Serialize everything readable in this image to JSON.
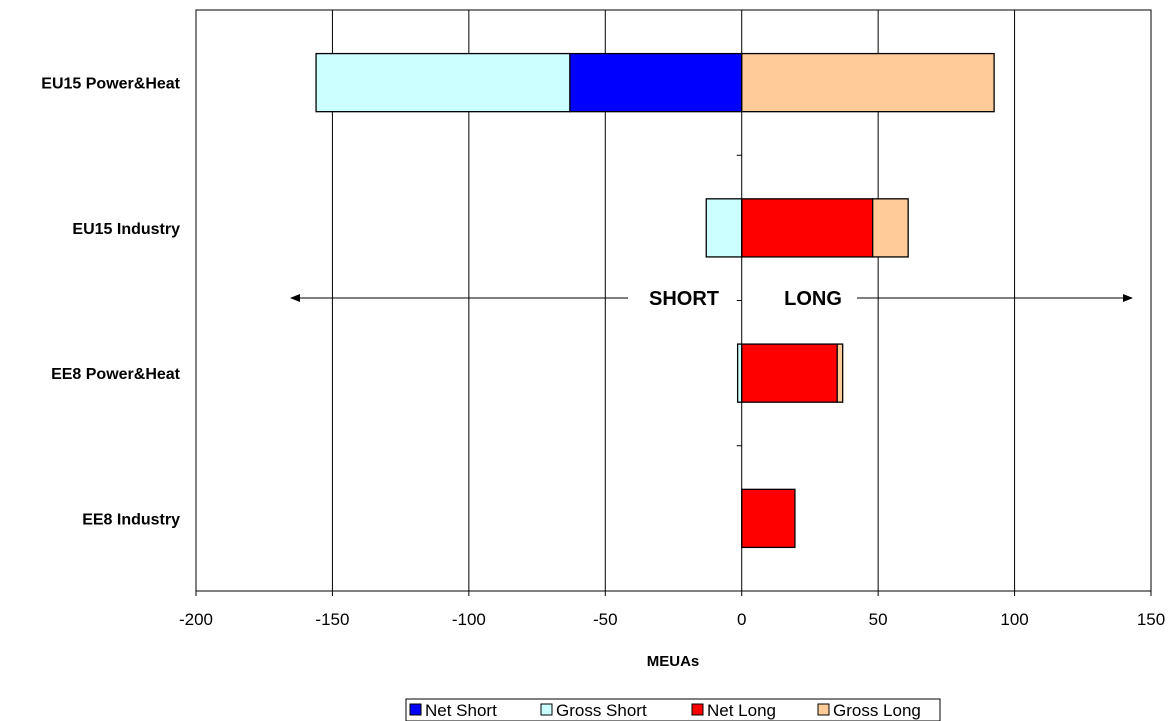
{
  "chart_data": {
    "type": "bar",
    "orientation": "horizontal",
    "stacked": true,
    "categories": [
      "EU15 Power&Heat",
      "EU15 Industry",
      "EE8 Power&Heat",
      "EE8 Industry"
    ],
    "series": [
      {
        "name": "Net Short",
        "color": "#0000ff",
        "values": [
          -63,
          0,
          0,
          0
        ]
      },
      {
        "name": "Gross Short",
        "color": "#ccffff",
        "values": [
          -93,
          -13,
          -1.5,
          0
        ]
      },
      {
        "name": "Net Long",
        "color": "#ff0000",
        "values": [
          0,
          48,
          35,
          19.5
        ]
      },
      {
        "name": "Gross Long",
        "color": "#ffcc99",
        "values": [
          92.5,
          13,
          2,
          0
        ]
      }
    ],
    "xlabel": "MEUAs",
    "xlim": [
      -200,
      150
    ],
    "xticks": [
      -200,
      -150,
      -100,
      -50,
      0,
      50,
      100,
      150
    ],
    "xtick_labels": [
      "-200",
      "-150",
      "-100",
      "-50",
      "0",
      "50",
      "100",
      "150"
    ],
    "grid": "vertical",
    "legend": "bottom",
    "annotations": [
      {
        "text": "SHORT",
        "arrow": "left"
      },
      {
        "text": "LONG",
        "arrow": "right"
      }
    ]
  }
}
